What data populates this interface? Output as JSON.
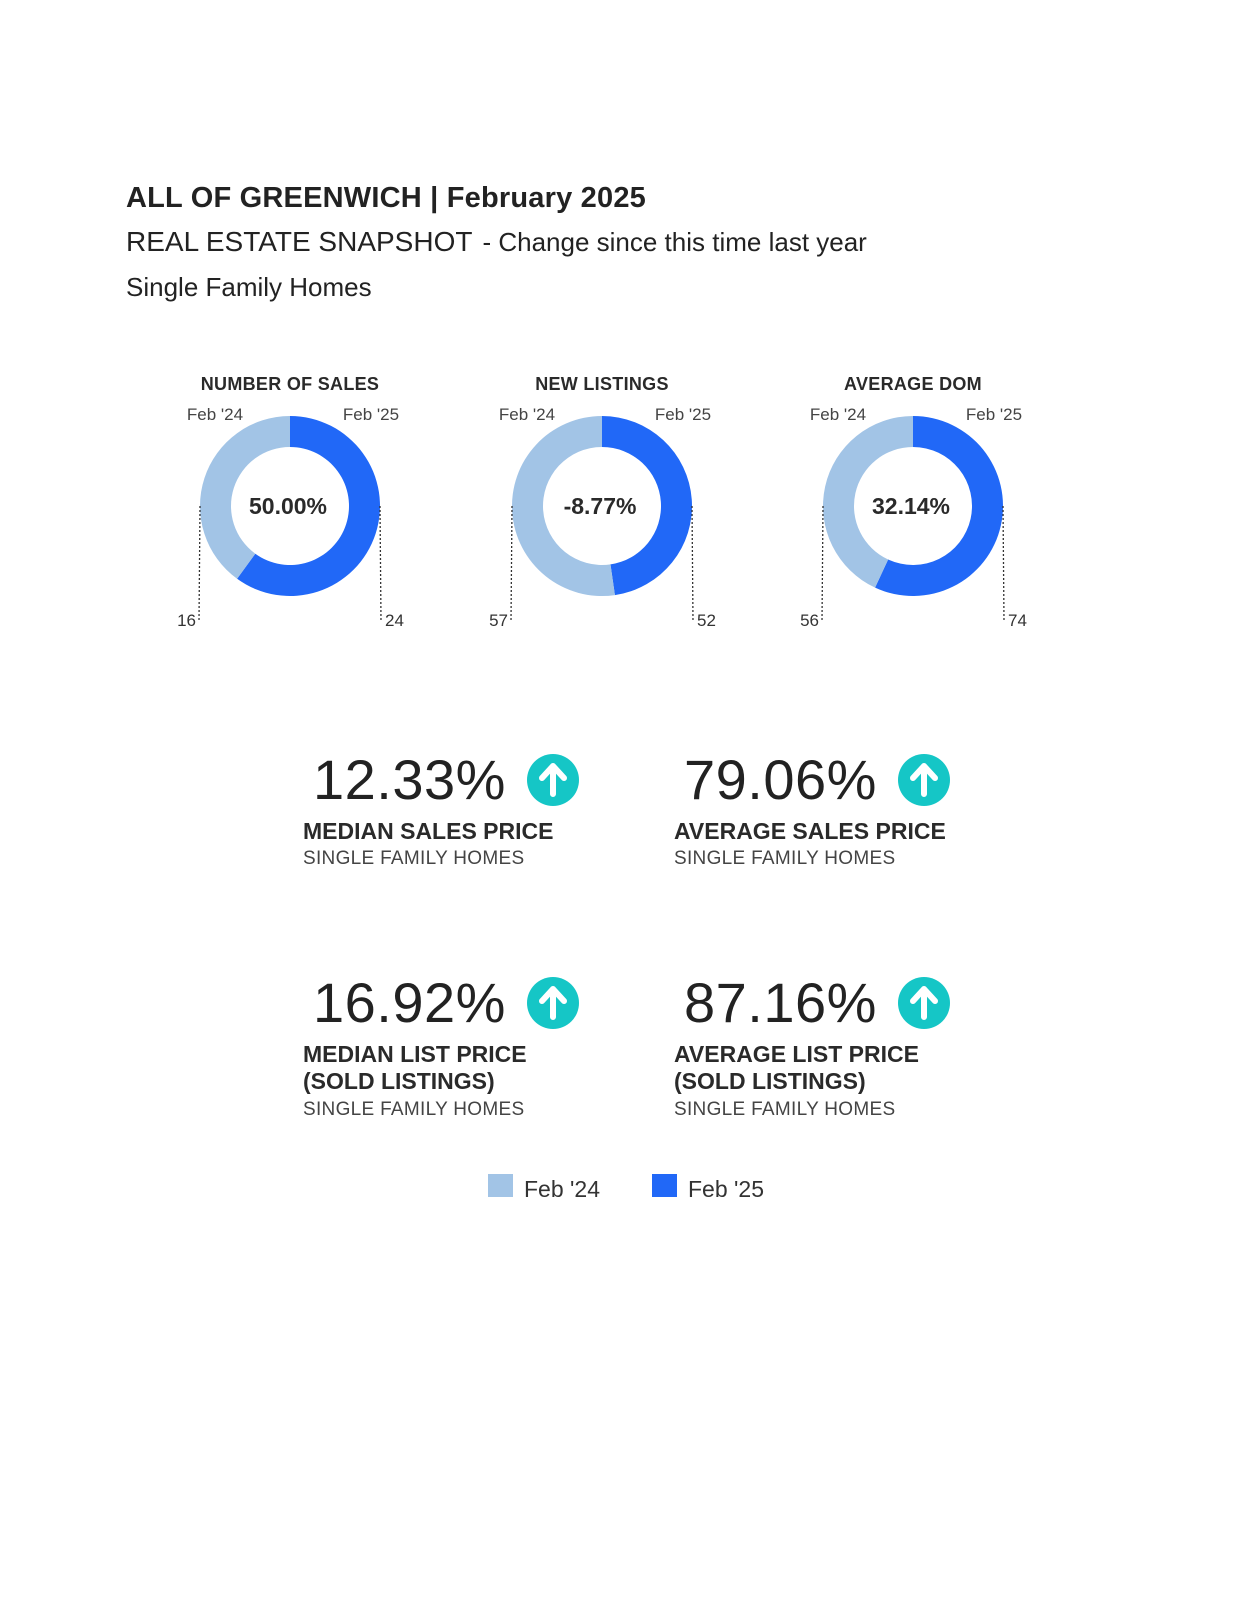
{
  "header": {
    "title": "ALL OF GREENWICH | February 2025",
    "subtitle": "REAL ESTATE SNAPSHOT",
    "subtitle_change": "- Change since this time last year",
    "category": "Single Family Homes"
  },
  "colors": {
    "prior": "#a2c4e6",
    "current": "#2168f7",
    "arrow": "#15c6c6"
  },
  "chart_data": [
    {
      "type": "pie",
      "title": "NUMBER OF SALES",
      "center_label": "50.00%",
      "series": [
        {
          "name": "Feb '24",
          "value": 16
        },
        {
          "name": "Feb '25",
          "value": 24
        }
      ]
    },
    {
      "type": "pie",
      "title": "NEW LISTINGS",
      "center_label": "-8.77%",
      "series": [
        {
          "name": "Feb '24",
          "value": 57
        },
        {
          "name": "Feb '25",
          "value": 52
        }
      ]
    },
    {
      "type": "pie",
      "title": "AVERAGE DOM",
      "center_label": "32.14%",
      "series": [
        {
          "name": "Feb '24",
          "value": 56
        },
        {
          "name": "Feb '25",
          "value": 74
        }
      ]
    }
  ],
  "stats": [
    {
      "value": "12.33%",
      "direction": "up",
      "label": [
        "MEDIAN SALES PRICE"
      ],
      "sublabel": "SINGLE FAMILY HOMES"
    },
    {
      "value": "79.06%",
      "direction": "up",
      "label": [
        "AVERAGE SALES PRICE"
      ],
      "sublabel": "SINGLE FAMILY HOMES"
    },
    {
      "value": "16.92%",
      "direction": "up",
      "label": [
        "MEDIAN LIST PRICE",
        "(SOLD LISTINGS)"
      ],
      "sublabel": "SINGLE FAMILY HOMES"
    },
    {
      "value": "87.16%",
      "direction": "up",
      "label": [
        "AVERAGE LIST PRICE",
        "(SOLD LISTINGS)"
      ],
      "sublabel": "SINGLE FAMILY HOMES"
    }
  ],
  "legend": [
    {
      "label": "Feb '24",
      "color": "#a2c4e6"
    },
    {
      "label": "Feb '25",
      "color": "#2168f7"
    }
  ]
}
